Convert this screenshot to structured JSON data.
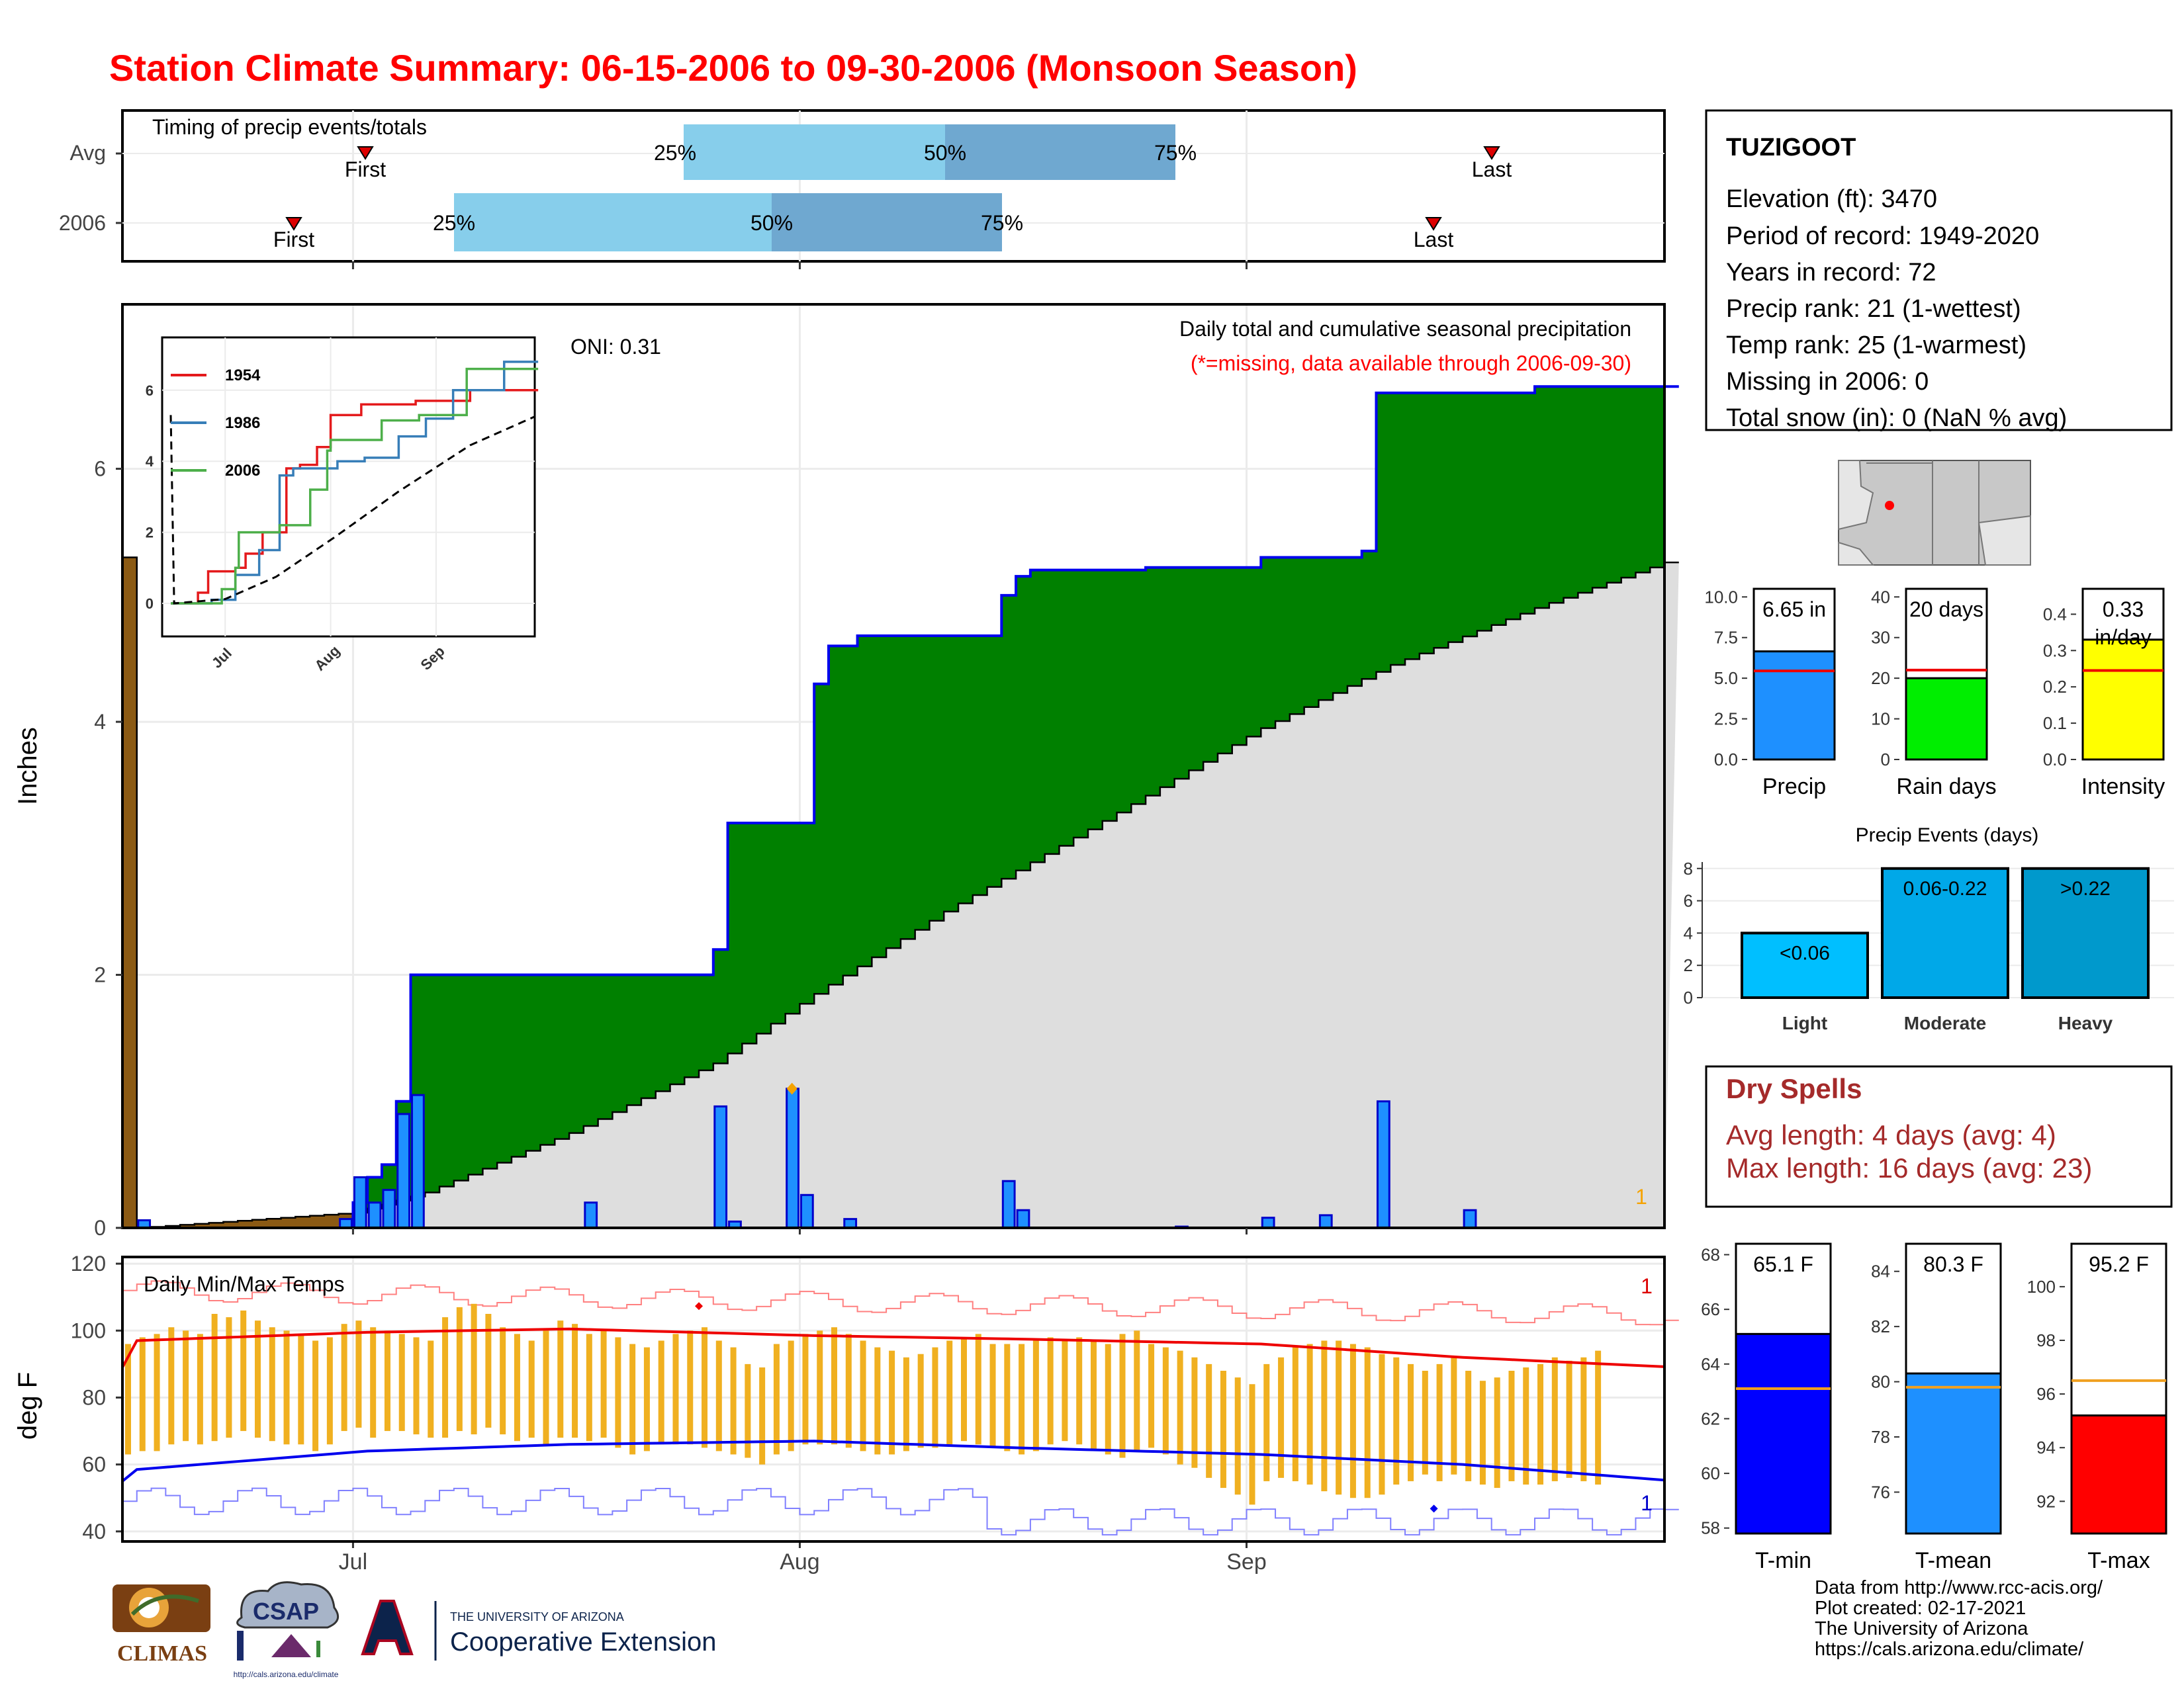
{
  "title": "Station Climate Summary: 06-15-2006 to 09-30-2006 (Monsoon Season)",
  "timing_panel": {
    "label": "Timing of precip events/totals",
    "rows": [
      {
        "name": "Avg",
        "first": "First",
        "last": "Last",
        "p25": "25%",
        "p50": "50%",
        "p75": "75%"
      },
      {
        "name": "2006",
        "first": "First",
        "last": "Last",
        "p25": "25%",
        "p50": "50%",
        "p75": "75%"
      }
    ]
  },
  "main_panel": {
    "ylabel": "Inches",
    "oni": "ONI: 0.31",
    "subtitle": "Daily total and cumulative seasonal precipitation",
    "missing_note": "(*=missing, data available through 2006-09-30)",
    "corner_count": "1",
    "x_ticks": [
      "Jul",
      "Aug",
      "Sep"
    ],
    "y_ticks": [
      "0",
      "2",
      "4",
      "6"
    ]
  },
  "inset": {
    "legend": [
      "1954",
      "1986",
      "2006"
    ],
    "colors": [
      "#e41a1c",
      "#377eb8",
      "#4daf4a"
    ],
    "x_ticks": [
      "Jul",
      "Aug",
      "Sep"
    ],
    "y_ticks": [
      "0",
      "2",
      "4",
      "6"
    ]
  },
  "temp_panel": {
    "label": "Daily Min/Max Temps",
    "ylabel": "deg F",
    "y_ticks": [
      "40",
      "60",
      "80",
      "100",
      "120"
    ],
    "max_count": "1",
    "min_count": "1"
  },
  "station": {
    "name": "TUZIGOOT",
    "lines": [
      "Elevation (ft): 3470",
      "Period of record: 1949-2020",
      "Years in record: 72",
      "Precip rank: 21 (1-wettest)",
      "Temp rank: 25 (1-warmest)",
      "Missing in 2006: 0",
      "Total snow (in): 0 (NaN % avg)"
    ]
  },
  "precip_bars": [
    {
      "label": "Precip",
      "value_text": "6.65 in",
      "value": 6.65,
      "avg": 5.45,
      "ylim": [
        0,
        10.5
      ],
      "ticks": [
        "0.0",
        "2.5",
        "5.0",
        "7.5",
        "10.0"
      ],
      "color": "#1e90ff"
    },
    {
      "label": "Rain days",
      "value_text": "20 days",
      "value": 20,
      "avg": 22,
      "ylim": [
        0,
        42
      ],
      "ticks": [
        "0",
        "10",
        "20",
        "30",
        "40"
      ],
      "color": "#00ee00"
    },
    {
      "label": "Intensity",
      "value_text": "0.33\nin/day",
      "value": 0.33,
      "avg": 0.245,
      "ylim": [
        0,
        0.47
      ],
      "ticks": [
        "0.0",
        "0.1",
        "0.2",
        "0.3",
        "0.4"
      ],
      "color": "#ffff00"
    }
  ],
  "events": {
    "title": "Precip Events (days)",
    "ticks": [
      "0",
      "2",
      "4",
      "6",
      "8"
    ],
    "bars": [
      {
        "label": "Light",
        "range": "<0.06",
        "value": 4,
        "color": "#00bfff"
      },
      {
        "label": "Moderate",
        "range": "0.06-0.22",
        "value": 8,
        "color": "#00a8e8"
      },
      {
        "label": "Heavy",
        "range": ">0.22",
        "value": 8,
        "color": "#0099cc"
      }
    ]
  },
  "dry_spells": {
    "title": "Dry Spells",
    "avg_line": "Avg length: 4 days (avg: 4)",
    "max_line": "Max length: 16 days (avg: 23)"
  },
  "temp_bars": [
    {
      "label": "T-min",
      "value_text": "65.1 F",
      "value": 65.1,
      "avg": 63.1,
      "ylim": [
        57.8,
        68.4
      ],
      "ticks": [
        "58",
        "60",
        "62",
        "64",
        "66",
        "68"
      ],
      "color": "#0000ff"
    },
    {
      "label": "T-mean",
      "value_text": "80.3 F",
      "value": 80.3,
      "avg": 79.8,
      "ylim": [
        74.5,
        85.0
      ],
      "ticks": [
        "76",
        "78",
        "80",
        "82",
        "84"
      ],
      "color": "#1e90ff"
    },
    {
      "label": "T-max",
      "value_text": "95.2 F",
      "value": 95.2,
      "avg": 96.5,
      "ylim": [
        90.8,
        101.6
      ],
      "ticks": [
        "92",
        "94",
        "96",
        "98",
        "100"
      ],
      "color": "#ff0000"
    }
  ],
  "footer": {
    "lines": "Data from http://www.rcc-acis.org/\nPlot created: 02-17-2021\nThe University of Arizona\nhttps://cals.arizona.edu/climate/"
  },
  "logos": {
    "climas": "CLIMAS",
    "csap": "CSAP",
    "csap_url": "http://cals.arizona.edu/climate",
    "ua_small": "THE UNIVERSITY OF ARIZONA",
    "ua_big": "Cooperative Extension"
  },
  "chart_data": [
    {
      "type": "area",
      "title": "Daily total and cumulative seasonal precipitation",
      "ylabel": "Inches",
      "x_range": [
        "2006-06-15",
        "2006-09-30"
      ],
      "ylim": [
        0,
        7.3
      ],
      "series": [
        {
          "name": "2006",
          "x": [
            "2006-06-15",
            "2006-06-29",
            "2006-06-30",
            "2006-07-01",
            "2006-07-02",
            "2006-07-03",
            "2006-07-04",
            "2006-07-24",
            "2006-07-25",
            "2006-07-26",
            "2006-07-28",
            "2006-08-01",
            "2006-08-02",
            "2006-08-03",
            "2006-08-04",
            "2006-08-05",
            "2006-08-14",
            "2006-08-15",
            "2006-08-16",
            "2006-08-24",
            "2006-09-01",
            "2006-09-08",
            "2006-09-09",
            "2006-09-10",
            "2006-09-20",
            "2006-09-30"
          ],
          "values": [
            0,
            0,
            0.2,
            0.4,
            0.5,
            1.0,
            2.0,
            2.0,
            2.2,
            3.2,
            3.2,
            4.3,
            4.6,
            4.6,
            4.68,
            4.68,
            5.0,
            5.15,
            5.2,
            5.22,
            5.3,
            5.35,
            6.6,
            6.6,
            6.65,
            6.65
          ]
        },
        {
          "name": "Average",
          "x": [
            "2006-06-15",
            "2006-06-30",
            "2006-07-05",
            "2006-07-15",
            "2006-07-25",
            "2006-08-01",
            "2006-08-10",
            "2006-08-20",
            "2006-09-01",
            "2006-09-10",
            "2006-09-20",
            "2006-09-30"
          ],
          "values": [
            0,
            0.12,
            0.28,
            0.75,
            1.3,
            1.85,
            2.5,
            3.15,
            3.95,
            4.45,
            4.9,
            5.3
          ]
        }
      ],
      "daily_precip": {
        "x": [
          "2006-06-15",
          "2006-06-29",
          "2006-06-30",
          "2006-07-01",
          "2006-07-02",
          "2006-07-03",
          "2006-07-04",
          "2006-07-16",
          "2006-07-25",
          "2006-07-26",
          "2006-07-30",
          "2006-07-31",
          "2006-08-03",
          "2006-08-14",
          "2006-08-15",
          "2006-08-26",
          "2006-09-01",
          "2006-09-05",
          "2006-09-09",
          "2006-09-15"
        ],
        "values": [
          0.06,
          0.07,
          0.4,
          0.2,
          0.3,
          0.9,
          1.05,
          0.2,
          0.96,
          0.05,
          1.1,
          0.26,
          0.07,
          0.37,
          0.14,
          0.01,
          0.08,
          0.1,
          1.0,
          0.14
        ]
      }
    },
    {
      "type": "line",
      "title": "",
      "ylim": [
        0,
        7.3
      ],
      "x_range": [
        "06-15",
        "09-30"
      ],
      "series": [
        {
          "name": "1954",
          "x": [
            "06-15",
            "06-22",
            "06-25",
            "07-03",
            "07-06",
            "07-11",
            "07-18",
            "07-22",
            "07-27",
            "07-31",
            "08-09",
            "08-25",
            "09-10",
            "09-30"
          ],
          "values": [
            0,
            0.3,
            0.9,
            1.0,
            1.4,
            2.0,
            3.8,
            3.9,
            4.4,
            5.3,
            5.6,
            5.7,
            6.0,
            6.2
          ]
        },
        {
          "name": "1986",
          "x": [
            "06-15",
            "06-26",
            "07-03",
            "07-10",
            "07-16",
            "07-20",
            "07-27",
            "08-02",
            "08-10",
            "08-20",
            "08-28",
            "09-05",
            "09-20",
            "09-30"
          ],
          "values": [
            0,
            0.1,
            0.8,
            1.5,
            3.6,
            3.8,
            3.8,
            4.0,
            4.1,
            4.7,
            5.2,
            6.0,
            6.8,
            7.1
          ]
        },
        {
          "name": "2006",
          "x": [
            "06-15",
            "06-29",
            "07-03",
            "07-04",
            "07-16",
            "07-25",
            "07-26",
            "07-30",
            "07-31",
            "08-15",
            "08-26",
            "09-09",
            "09-30"
          ],
          "values": [
            0,
            0.4,
            1.0,
            2.0,
            2.2,
            3.2,
            3.2,
            4.3,
            4.6,
            5.15,
            5.3,
            6.6,
            6.65
          ]
        },
        {
          "name": "Average",
          "x": [
            "06-15",
            "06-30",
            "07-15",
            "08-01",
            "08-20",
            "09-10",
            "09-30"
          ],
          "values": [
            0,
            0.12,
            0.75,
            1.85,
            3.15,
            4.45,
            5.3
          ]
        }
      ]
    },
    {
      "type": "bar",
      "title": "Daily Min/Max Temps",
      "ylabel": "deg F",
      "ylim": [
        37,
        122
      ],
      "series": [
        {
          "name": "Daily max",
          "values": [
            96,
            98,
            99,
            101,
            100,
            99,
            105,
            104,
            106,
            103,
            101,
            100,
            99,
            97,
            98,
            102,
            103,
            101,
            100,
            99,
            98,
            97,
            104,
            107,
            108,
            105,
            101,
            99,
            97,
            100,
            103,
            102,
            99,
            100,
            98,
            96,
            95,
            97,
            99,
            100,
            101,
            97,
            95,
            90,
            89,
            96,
            97,
            99,
            100,
            101,
            99,
            97,
            95,
            94,
            92,
            93,
            95,
            97,
            98,
            99,
            96,
            96,
            96,
            97,
            98,
            97,
            98,
            97,
            96,
            99,
            100,
            96,
            95,
            94,
            92,
            90,
            88,
            86,
            84,
            90,
            92,
            95,
            96,
            97,
            97,
            96,
            95,
            93,
            92,
            90,
            88,
            90,
            92,
            88,
            85,
            86,
            88,
            89,
            90,
            92,
            91,
            92,
            94
          ]
        },
        {
          "name": "Daily min",
          "values": [
            63,
            64,
            64,
            66,
            67,
            66,
            67,
            68,
            70,
            68,
            67,
            66,
            66,
            64,
            66,
            70,
            71,
            68,
            70,
            70,
            69,
            68,
            68,
            70,
            69,
            71,
            69,
            67,
            68,
            66,
            68,
            68,
            67,
            68,
            65,
            63,
            64,
            66,
            66,
            66,
            65,
            64,
            63,
            62,
            60,
            63,
            64,
            66,
            66,
            66,
            65,
            64,
            63,
            63,
            64,
            65,
            65,
            66,
            67,
            66,
            65,
            64,
            63,
            64,
            66,
            67,
            66,
            64,
            63,
            62,
            64,
            65,
            63,
            60,
            59,
            56,
            53,
            51,
            48,
            55,
            56,
            55,
            54,
            52,
            51,
            50,
            50,
            51,
            54,
            55,
            57,
            55,
            57,
            55,
            54,
            53,
            55,
            54,
            54,
            55,
            56,
            55,
            54
          ]
        },
        {
          "name": "Avg max",
          "x": [
            "06-15",
            "07-01",
            "07-15",
            "08-01",
            "08-15",
            "09-01",
            "09-15",
            "09-30"
          ],
          "values": [
            97,
            99.5,
            100.5,
            98.5,
            97.5,
            96,
            92,
            89
          ]
        },
        {
          "name": "Avg min",
          "x": [
            "06-15",
            "07-01",
            "07-15",
            "08-01",
            "08-15",
            "09-01",
            "09-15",
            "09-30"
          ],
          "values": [
            58.5,
            64,
            66,
            67,
            65,
            63,
            60,
            55
          ]
        }
      ]
    }
  ]
}
